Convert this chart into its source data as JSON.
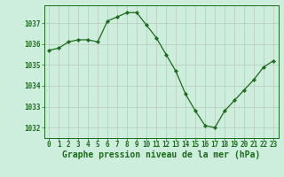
{
  "x": [
    0,
    1,
    2,
    3,
    4,
    5,
    6,
    7,
    8,
    9,
    10,
    11,
    12,
    13,
    14,
    15,
    16,
    17,
    18,
    19,
    20,
    21,
    22,
    23
  ],
  "y": [
    1035.7,
    1035.8,
    1036.1,
    1036.2,
    1036.2,
    1036.1,
    1037.1,
    1037.3,
    1037.5,
    1037.5,
    1036.9,
    1036.3,
    1035.5,
    1034.7,
    1033.6,
    1032.8,
    1032.1,
    1032.0,
    1032.8,
    1033.3,
    1033.8,
    1034.3,
    1034.9,
    1035.2
  ],
  "line_color": "#1a6b1a",
  "marker": "D",
  "marker_size": 2.2,
  "bg_color": "#ceeedd",
  "grid_color": "#b8c8b8",
  "xlabel": "Graphe pression niveau de la mer (hPa)",
  "xlim": [
    -0.5,
    23.5
  ],
  "ylim": [
    1031.5,
    1037.85
  ],
  "yticks": [
    1032,
    1033,
    1034,
    1035,
    1036,
    1037
  ],
  "xticks": [
    0,
    1,
    2,
    3,
    4,
    5,
    6,
    7,
    8,
    9,
    10,
    11,
    12,
    13,
    14,
    15,
    16,
    17,
    18,
    19,
    20,
    21,
    22,
    23
  ],
  "tick_label_fontsize": 5.5,
  "xlabel_fontsize": 7.0,
  "line_width": 0.9
}
